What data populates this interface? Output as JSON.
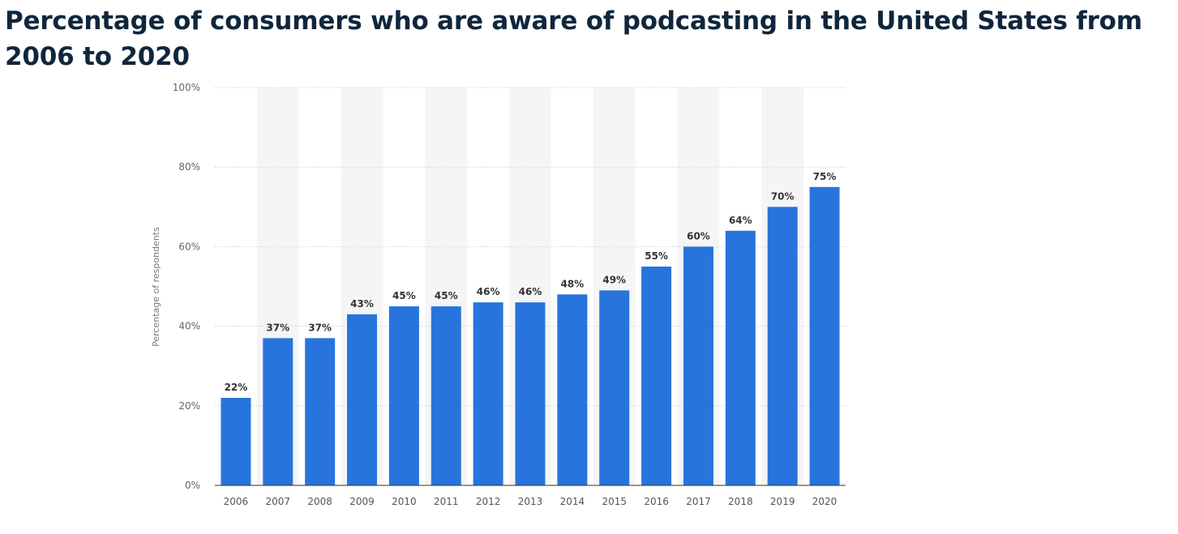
{
  "page": {
    "title": "Percentage of consumers who are aware of podcasting in the United States from 2006 to 2020"
  },
  "chart_data": {
    "type": "bar",
    "title": "Percentage of consumers who are aware of podcasting in the United States from 2006 to 2020",
    "categories": [
      "2006",
      "2007",
      "2008",
      "2009",
      "2010",
      "2011",
      "2012",
      "2013",
      "2014",
      "2015",
      "2016",
      "2017",
      "2018",
      "2019",
      "2020"
    ],
    "values": [
      22,
      37,
      37,
      43,
      45,
      45,
      46,
      46,
      48,
      49,
      55,
      60,
      64,
      70,
      75
    ],
    "data_labels": [
      "22%",
      "37%",
      "37%",
      "43%",
      "45%",
      "45%",
      "46%",
      "46%",
      "48%",
      "49%",
      "55%",
      "60%",
      "64%",
      "70%",
      "75%"
    ],
    "xlabel": "",
    "ylabel": "Percentage of respondents",
    "ylim": [
      0,
      100
    ],
    "yticks": [
      0,
      20,
      40,
      60,
      80,
      100
    ],
    "ytick_labels": [
      "0%",
      "20%",
      "40%",
      "60%",
      "80%",
      "100%"
    ],
    "grid": true,
    "legend": "none",
    "colors": {
      "bar": "#2874dd",
      "band": "#f5f5f5",
      "grid": "#c8c8c8",
      "axis": "#333333"
    }
  }
}
